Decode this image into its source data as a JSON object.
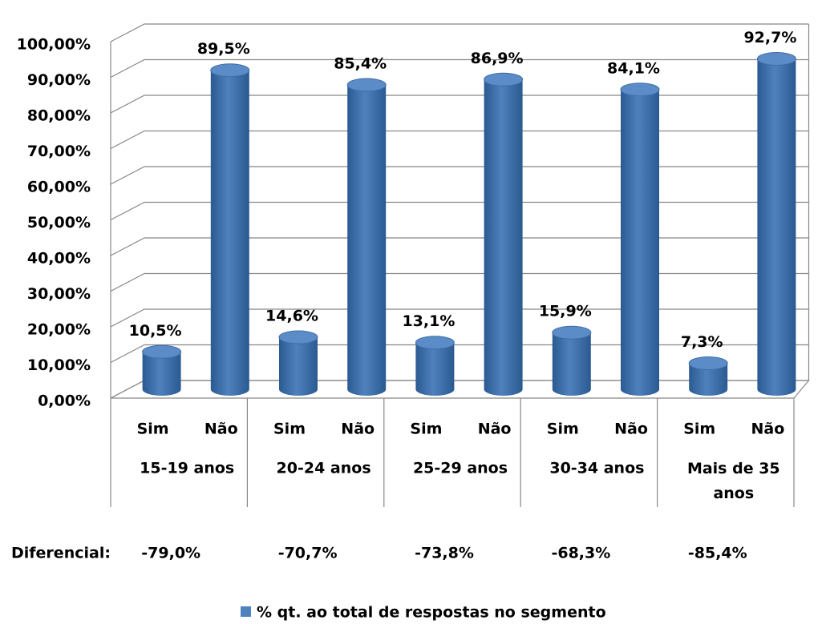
{
  "chart_data": {
    "type": "bar",
    "categories": [
      "Sim",
      "Não",
      "Sim",
      "Não",
      "Sim",
      "Não",
      "Sim",
      "Não",
      "Sim",
      "Não"
    ],
    "groups": [
      "15-19 anos",
      "20-24 anos",
      "25-29 anos",
      "30-34 anos",
      "Mais de 35 anos"
    ],
    "series": [
      {
        "name": "% qt. ao total de respostas no segmento",
        "color": "#4f81bd",
        "values": [
          10.5,
          89.5,
          14.6,
          85.4,
          13.1,
          86.9,
          15.9,
          84.1,
          7.3,
          92.7
        ],
        "value_labels": [
          "10,5%",
          "89,5%",
          "14,6%",
          "85,4%",
          "13,1%",
          "86,9%",
          "15,9%",
          "84,1%",
          "7,3%",
          "92,7%"
        ]
      }
    ],
    "ylim": [
      0,
      100
    ],
    "yticks": [
      {
        "value": 0,
        "label": "0,00%"
      },
      {
        "value": 10,
        "label": "10,00%"
      },
      {
        "value": 20,
        "label": "20,00%"
      },
      {
        "value": 30,
        "label": "30,00%"
      },
      {
        "value": 40,
        "label": "40,00%"
      },
      {
        "value": 50,
        "label": "50,00%"
      },
      {
        "value": 60,
        "label": "60,00%"
      },
      {
        "value": 70,
        "label": "70,00%"
      },
      {
        "value": 80,
        "label": "80,00%"
      },
      {
        "value": 90,
        "label": "90,00%"
      },
      {
        "value": 100,
        "label": "100,00%"
      }
    ],
    "grid": true,
    "differential": {
      "label": "Diferencial:",
      "values": [
        -79.0,
        -70.7,
        -73.8,
        -68.3,
        -85.4
      ],
      "value_labels": [
        "-79,0%",
        "-70,7%",
        "-73,8%",
        "-68,3%",
        "-85,4%"
      ]
    }
  }
}
